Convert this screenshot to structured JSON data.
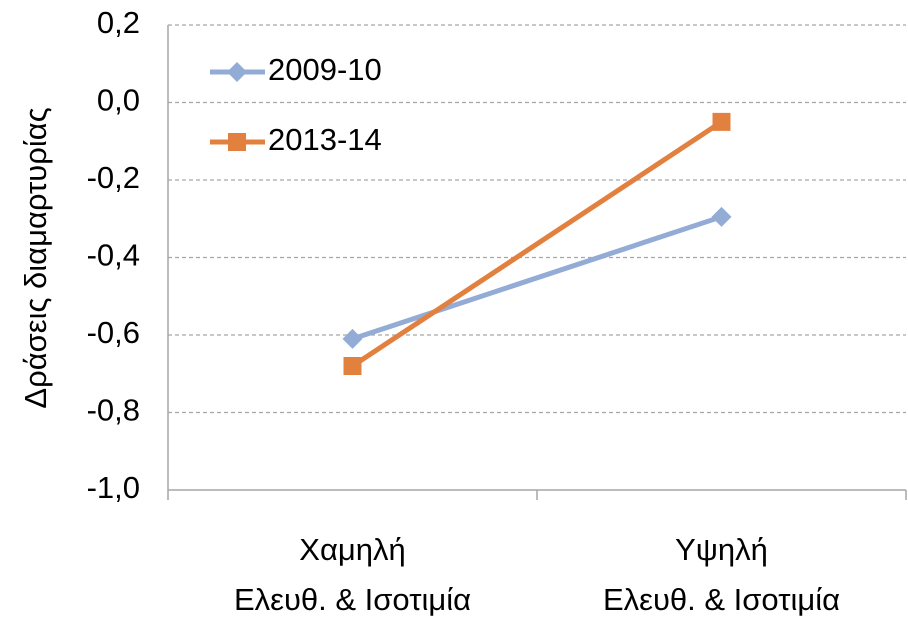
{
  "chart_data": {
    "type": "line",
    "y_label": "Δράσεις διαμαρτυρίας",
    "categories": [
      [
        "Χαμηλή",
        "Ελευθ. & Ισοτιμία"
      ],
      [
        "Υψηλή",
        "Ελευθ. & Ισοτιμία"
      ]
    ],
    "series": [
      {
        "name": "2009-10",
        "color": "#93acd6",
        "marker": "diamond",
        "values": [
          -0.61,
          -0.295
        ]
      },
      {
        "name": "2013-14",
        "color": "#e2803f",
        "marker": "square",
        "values": [
          -0.68,
          -0.05
        ]
      }
    ],
    "ylim": [
      -1.0,
      0.2
    ],
    "yticks": [
      {
        "value": -1.0,
        "label": "-1,0"
      },
      {
        "value": -0.8,
        "label": "-0,8"
      },
      {
        "value": -0.6,
        "label": "-0,6"
      },
      {
        "value": -0.4,
        "label": "-0,4"
      },
      {
        "value": -0.2,
        "label": "-0,2"
      },
      {
        "value": 0.0,
        "label": "0,0"
      },
      {
        "value": 0.2,
        "label": "0,2"
      }
    ],
    "grid": true,
    "legend": "top-left"
  }
}
